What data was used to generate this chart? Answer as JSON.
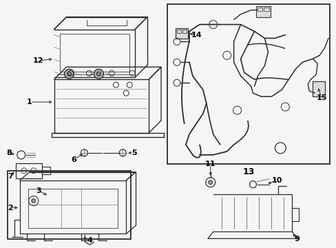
{
  "bg": "#f5f5f5",
  "lc": "#2a2a2a",
  "tc": "#000000",
  "fw": 4.89,
  "fh": 3.6,
  "dpi": 100
}
